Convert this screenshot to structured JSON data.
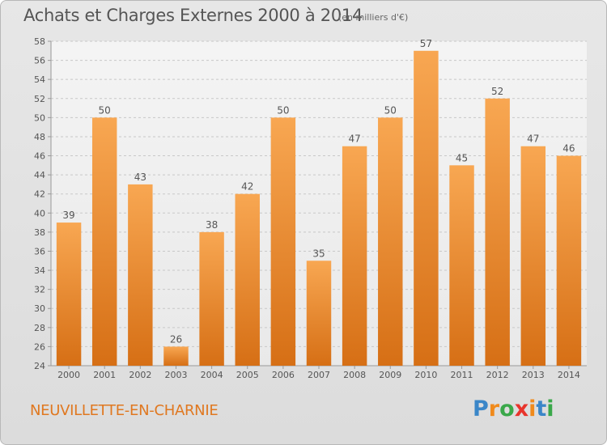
{
  "title": "Achats et Charges Externes 2000 à 2014",
  "subtitle": "(en milliers d'€)",
  "commune": "NEUVILLETTE-EN-CHARNIE",
  "logo": {
    "letters": [
      "P",
      "r",
      "o",
      "x",
      "i",
      "t",
      "i"
    ],
    "colors": [
      "#3a86c8",
      "#f08a1c",
      "#3aa84a",
      "#e8342c",
      "#f08a1c",
      "#3a86c8",
      "#3aa84a"
    ]
  },
  "colors": {
    "bar_light": "#f8a752",
    "bar_dark": "#d66f15",
    "axis_text": "#555555",
    "grid": "#c8c8c8"
  },
  "chart_data": {
    "type": "bar",
    "categories": [
      "2000",
      "2001",
      "2002",
      "2003",
      "2004",
      "2005",
      "2006",
      "2007",
      "2008",
      "2009",
      "2010",
      "2011",
      "2012",
      "2013",
      "2014"
    ],
    "values": [
      39,
      50,
      43,
      26,
      38,
      42,
      50,
      35,
      47,
      50,
      57,
      45,
      52,
      47,
      46
    ],
    "ylim": [
      24,
      58
    ],
    "yticks": [
      24,
      26,
      28,
      30,
      32,
      34,
      36,
      38,
      40,
      42,
      44,
      46,
      48,
      50,
      52,
      54,
      56,
      58
    ],
    "grid": true,
    "data_labels": true
  }
}
